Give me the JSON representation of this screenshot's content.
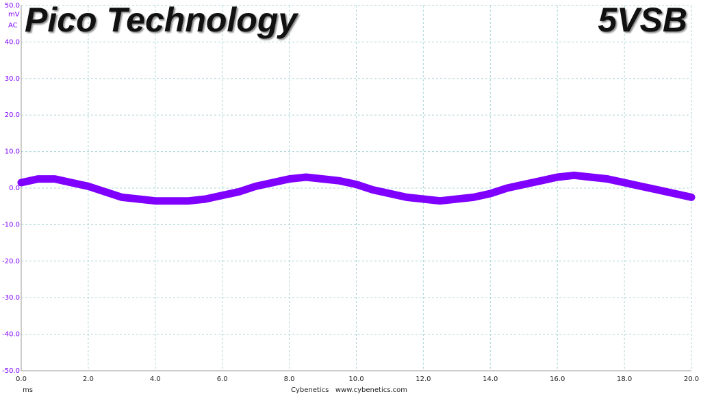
{
  "chart_data": {
    "type": "line",
    "title": "Pico Technology",
    "subtitle": "5VSB",
    "y_unit": "mV",
    "y_coupling": "AC",
    "x_unit": "ms",
    "footer": "Cybenetics   www.cybenetics.com",
    "x": [
      0,
      0.5,
      1,
      1.5,
      2,
      2.5,
      3,
      3.5,
      4,
      4.5,
      5,
      5.5,
      6,
      6.5,
      7,
      7.5,
      8,
      8.5,
      9,
      9.5,
      10,
      10.5,
      11,
      11.5,
      12,
      12.5,
      13,
      13.5,
      14,
      14.5,
      15,
      15.5,
      16,
      16.5,
      17,
      17.5,
      18,
      18.5,
      19,
      19.5,
      20
    ],
    "series": [
      {
        "color": "#7f00ff",
        "values": [
          1.5,
          2.5,
          2.5,
          1.5,
          0.5,
          -1,
          -2.5,
          -3,
          -3.5,
          -3.5,
          -3.5,
          -3,
          -2,
          -1,
          0.5,
          1.5,
          2.5,
          3,
          2.5,
          2,
          1,
          -0.5,
          -1.5,
          -2.5,
          -3,
          -3.5,
          -3,
          -2.5,
          -1.5,
          0,
          1,
          2,
          3,
          3.5,
          3,
          2.5,
          1.5,
          0.5,
          -0.5,
          -1.5,
          -2.5
        ]
      }
    ],
    "xlim": [
      0,
      20
    ],
    "ylim": [
      -50,
      50
    ],
    "xticks": [
      {
        "value": 0,
        "label": "0.0"
      },
      {
        "value": 2,
        "label": "2.0"
      },
      {
        "value": 4,
        "label": "4.0"
      },
      {
        "value": 6,
        "label": "6.0"
      },
      {
        "value": 8,
        "label": "8.0"
      },
      {
        "value": 10,
        "label": "10.0"
      },
      {
        "value": 12,
        "label": "12.0"
      },
      {
        "value": 14,
        "label": "14.0"
      },
      {
        "value": 16,
        "label": "16.0"
      },
      {
        "value": 18,
        "label": "18.0"
      },
      {
        "value": 20,
        "label": "20.0"
      }
    ],
    "yticks": [
      {
        "value": 50,
        "label": "50.0"
      },
      {
        "value": 40,
        "label": "40.0"
      },
      {
        "value": 30,
        "label": "30.0"
      },
      {
        "value": 20,
        "label": "20.0"
      },
      {
        "value": 10,
        "label": "10.0"
      },
      {
        "value": 0,
        "label": "0.0"
      },
      {
        "value": -10,
        "label": "-10.0"
      },
      {
        "value": -20,
        "label": "-20.0"
      },
      {
        "value": -30,
        "label": "-30.0"
      },
      {
        "value": -40,
        "label": "-40.0"
      },
      {
        "value": -50,
        "label": "-50.0"
      }
    ],
    "grid": true
  }
}
